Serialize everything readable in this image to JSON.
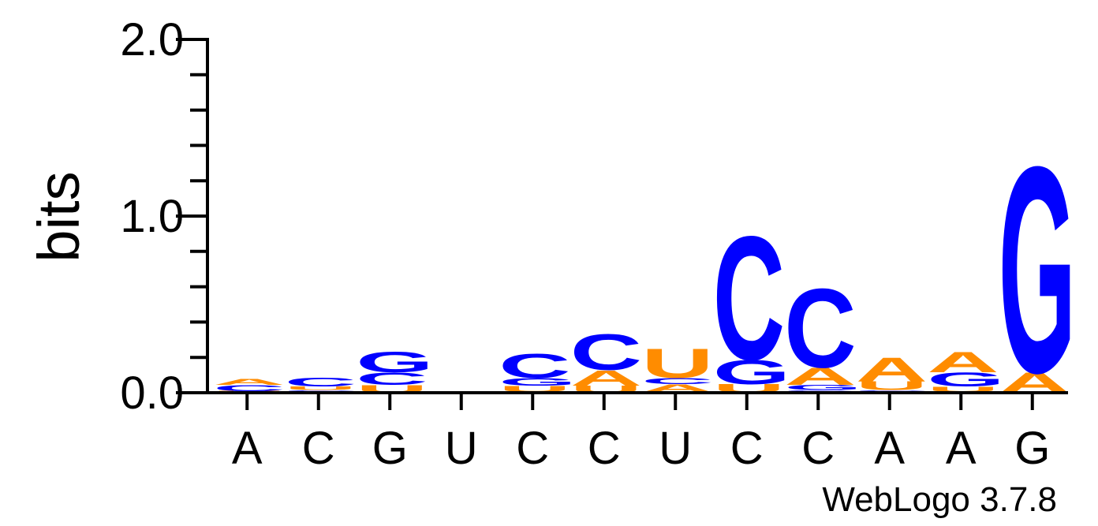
{
  "chart_data": {
    "type": "sequence-logo",
    "ylabel": "bits",
    "ylim": [
      0,
      2.0
    ],
    "yticks": [
      "0.0",
      "1.0",
      "2.0"
    ],
    "xticks": [
      "A",
      "C",
      "G",
      "U",
      "C",
      "C",
      "U",
      "C",
      "C",
      "A",
      "A",
      "G"
    ],
    "colors": {
      "A": "#FF8C00",
      "U": "#FF8C00",
      "C": "#0000FF",
      "G": "#0000FF"
    },
    "positions": [
      {
        "stack": [
          {
            "letter": "G",
            "bits": 0.005
          },
          {
            "letter": "U",
            "bits": 0.005
          },
          {
            "letter": "C",
            "bits": 0.035
          },
          {
            "letter": "A",
            "bits": 0.035
          }
        ]
      },
      {
        "stack": [
          {
            "letter": "A",
            "bits": 0.005
          },
          {
            "letter": "G",
            "bits": 0.01
          },
          {
            "letter": "U",
            "bits": 0.02
          },
          {
            "letter": "C",
            "bits": 0.05
          }
        ]
      },
      {
        "stack": [
          {
            "letter": "U",
            "bits": 0.045
          },
          {
            "letter": "C",
            "bits": 0.07
          },
          {
            "letter": "G",
            "bits": 0.12
          }
        ]
      },
      {
        "stack": []
      },
      {
        "stack": [
          {
            "letter": "A",
            "bits": 0.005
          },
          {
            "letter": "U",
            "bits": 0.035
          },
          {
            "letter": "G",
            "bits": 0.045
          },
          {
            "letter": "C",
            "bits": 0.14
          }
        ]
      },
      {
        "stack": [
          {
            "letter": "U",
            "bits": 0.04
          },
          {
            "letter": "A",
            "bits": 0.09
          },
          {
            "letter": "C",
            "bits": 0.21
          }
        ]
      },
      {
        "stack": [
          {
            "letter": "G",
            "bits": 0.005
          },
          {
            "letter": "A",
            "bits": 0.045
          },
          {
            "letter": "C",
            "bits": 0.035
          },
          {
            "letter": "U",
            "bits": 0.17
          }
        ]
      },
      {
        "stack": [
          {
            "letter": "U",
            "bits": 0.05
          },
          {
            "letter": "G",
            "bits": 0.14
          },
          {
            "letter": "C",
            "bits": 0.72
          }
        ]
      },
      {
        "stack": [
          {
            "letter": "U",
            "bits": 0.005
          },
          {
            "letter": "C",
            "bits": 0.01
          },
          {
            "letter": "G",
            "bits": 0.03
          },
          {
            "letter": "A",
            "bits": 0.1
          },
          {
            "letter": "C",
            "bits": 0.46
          }
        ]
      },
      {
        "stack": [
          {
            "letter": "C",
            "bits": 0.005
          },
          {
            "letter": "G",
            "bits": 0.01
          },
          {
            "letter": "U",
            "bits": 0.05
          },
          {
            "letter": "A",
            "bits": 0.14
          }
        ]
      },
      {
        "stack": [
          {
            "letter": "C",
            "bits": 0.005
          },
          {
            "letter": "U",
            "bits": 0.03
          },
          {
            "letter": "G",
            "bits": 0.08
          },
          {
            "letter": "A",
            "bits": 0.12
          }
        ]
      },
      {
        "stack": [
          {
            "letter": "A",
            "bits": 0.12
          },
          {
            "letter": "G",
            "bits": 1.2
          }
        ]
      }
    ],
    "credit": "WebLogo 3.7.8"
  }
}
